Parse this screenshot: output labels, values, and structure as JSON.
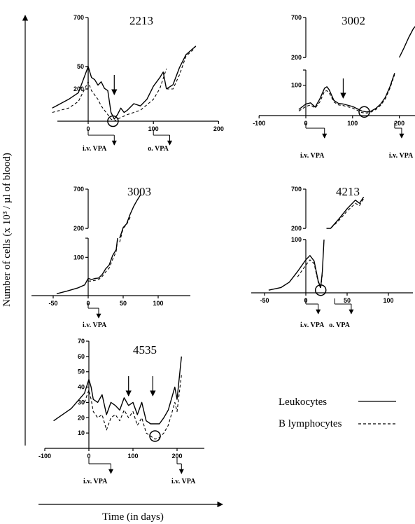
{
  "figure": {
    "ylabel": "Number of cells (x 10³ / µl of blood)",
    "xlabel": "Time (in days)",
    "legend": [
      {
        "name": "Leukocytes",
        "style": "solid"
      },
      {
        "name": "B lymphocytes",
        "style": "dashed"
      }
    ]
  },
  "chart_data": [
    {
      "type": "line",
      "title": "2213",
      "xlim": [
        -55,
        200
      ],
      "xticks": [
        0,
        100,
        200
      ],
      "ylim_low": [
        0,
        50
      ],
      "yticks_low": [
        50
      ],
      "ylim_high": [
        0,
        700
      ],
      "yticks_high": [
        200,
        700
      ],
      "series": [
        {
          "name": "Leukocytes",
          "x": [
            -55,
            -30,
            -15,
            0,
            5,
            10,
            15,
            20,
            25,
            30,
            35,
            40,
            45,
            50,
            55,
            60,
            70,
            80,
            90,
            100,
            105,
            110,
            115,
            120
          ],
          "y": [
            12,
            20,
            26,
            50,
            40,
            38,
            33,
            36,
            30,
            28,
            8,
            2,
            6,
            12,
            8,
            10,
            16,
            14,
            20,
            32,
            36,
            40,
            45,
            52
          ]
        },
        {
          "name": "B lymphocytes",
          "x": [
            -55,
            -30,
            -15,
            0,
            5,
            10,
            15,
            20,
            25,
            30,
            35,
            40,
            45,
            60,
            80,
            100,
            110,
            120
          ],
          "y": [
            8,
            12,
            18,
            36,
            28,
            24,
            20,
            14,
            10,
            6,
            2,
            0,
            2,
            6,
            10,
            20,
            30,
            48
          ]
        },
        {
          "name": "Leukocytes",
          "x": [
            120,
            130,
            140,
            150,
            160,
            165
          ],
          "y": [
            120,
            230,
            350,
            440,
            480,
            500
          ]
        },
        {
          "name": "B lymphocytes",
          "x": [
            120,
            130,
            140,
            150,
            160,
            165
          ],
          "y": [
            80,
            160,
            300,
            430,
            470,
            500
          ]
        }
      ],
      "markers": {
        "arrows_x": [
          40
        ],
        "circles": [
          {
            "x": 38,
            "y": 0
          }
        ]
      },
      "treatments": [
        {
          "label": "i.v. VPA",
          "x0": 0,
          "x1": 40
        },
        {
          "label": "o. VPA",
          "x0": 100,
          "x1": 125
        }
      ]
    },
    {
      "type": "line",
      "title": "3002",
      "xlim": [
        -100,
        240
      ],
      "xticks": [
        -100,
        0,
        100,
        200
      ],
      "ylim_low": [
        0,
        150
      ],
      "yticks_low": [
        100
      ],
      "ylim_high": [
        0,
        700
      ],
      "yticks_high": [
        200,
        700
      ],
      "series": [
        {
          "name": "Leukocytes",
          "x": [
            -15,
            0,
            10,
            20,
            30,
            40,
            45,
            50,
            60,
            70,
            80,
            100,
            120,
            130,
            140,
            150,
            160,
            170,
            180,
            190
          ],
          "y": [
            20,
            38,
            42,
            28,
            55,
            90,
            95,
            85,
            50,
            40,
            38,
            30,
            15,
            12,
            15,
            24,
            38,
            60,
            95,
            140
          ]
        },
        {
          "name": "B lymphocytes",
          "x": [
            -15,
            0,
            10,
            20,
            30,
            40,
            45,
            50,
            60,
            70,
            80,
            100,
            120,
            130,
            140,
            150,
            160,
            170,
            180,
            190
          ],
          "y": [
            15,
            30,
            35,
            25,
            45,
            80,
            82,
            75,
            45,
            35,
            33,
            25,
            10,
            8,
            12,
            20,
            34,
            55,
            90,
            135
          ]
        },
        {
          "name": "Leukocytes",
          "x": [
            200,
            210,
            220,
            230,
            240
          ],
          "y": [
            180,
            320,
            450,
            560,
            630
          ]
        }
      ],
      "markers": {
        "arrows_x": [
          80
        ],
        "circles": [
          {
            "x": 125,
            "y": 12
          }
        ]
      },
      "treatments": [
        {
          "label": "i.v. VPA",
          "x0": 0,
          "x1": 40
        },
        {
          "label": "i.v. VPA",
          "x0": 190,
          "x1": 205
        }
      ]
    },
    {
      "type": "line",
      "title": "3003",
      "xlim": [
        -50,
        100
      ],
      "xticks": [
        -50,
        0,
        50,
        100
      ],
      "ylim_low": [
        0,
        150
      ],
      "yticks_low": [
        100
      ],
      "ylim_high": [
        0,
        700
      ],
      "yticks_high": [
        200,
        700
      ],
      "series": [
        {
          "name": "Leukocytes",
          "x": [
            -45,
            -30,
            -15,
            -5,
            0,
            5,
            10,
            15,
            20,
            25,
            30,
            35,
            40,
            42
          ],
          "y": [
            5,
            12,
            20,
            28,
            45,
            42,
            45,
            46,
            55,
            70,
            80,
            105,
            120,
            150
          ]
        },
        {
          "name": "B lymphocytes",
          "x": [
            0,
            5,
            10,
            15,
            20,
            25,
            30,
            35,
            40,
            42
          ],
          "y": [
            38,
            38,
            40,
            42,
            50,
            62,
            72,
            95,
            115,
            145
          ]
        },
        {
          "name": "Leukocytes",
          "x": [
            45,
            50,
            55,
            60,
            65,
            70,
            75
          ],
          "y": [
            150,
            210,
            260,
            380,
            480,
            560,
            630
          ]
        },
        {
          "name": "B lymphocytes",
          "x": [
            45,
            50,
            55,
            60
          ],
          "y": [
            140,
            200,
            250,
            340
          ]
        }
      ],
      "markers": {
        "arrows_x": [],
        "circles": []
      },
      "treatments": [
        {
          "label": "i.v. VPA",
          "x0": 0,
          "x1": 15
        }
      ]
    },
    {
      "type": "line",
      "title": "4213",
      "xlim": [
        -50,
        100
      ],
      "xticks": [
        -50,
        0,
        50,
        100
      ],
      "ylim_low": [
        0,
        100
      ],
      "yticks_low": [
        100
      ],
      "ylim_high": [
        0,
        700
      ],
      "yticks_high": [
        200,
        700
      ],
      "series": [
        {
          "name": "Leukocytes",
          "x": [
            -45,
            -30,
            -20,
            -10,
            0,
            5,
            10,
            15,
            18,
            20,
            22
          ],
          "y": [
            5,
            10,
            20,
            40,
            62,
            70,
            60,
            22,
            10,
            40,
            100
          ]
        },
        {
          "name": "B lymphocytes",
          "x": [
            -10,
            0,
            5,
            10,
            15,
            18,
            20
          ],
          "y": [
            30,
            52,
            62,
            55,
            20,
            8,
            35
          ]
        },
        {
          "name": "Leukocytes",
          "x": [
            25,
            30,
            40,
            50,
            60,
            65,
            70
          ],
          "y": [
            150,
            200,
            320,
            450,
            560,
            520,
            600
          ]
        },
        {
          "name": "B lymphocytes",
          "x": [
            25,
            30,
            40,
            50,
            60,
            65,
            70
          ],
          "y": [
            140,
            190,
            300,
            420,
            520,
            490,
            580
          ]
        }
      ],
      "markers": {
        "arrows_x": [],
        "circles": [
          {
            "x": 18,
            "y": 5
          }
        ]
      },
      "treatments": [
        {
          "label": "i.v. VPA",
          "x0": 0,
          "x1": 15
        },
        {
          "label": "o. VPA",
          "x0": 35,
          "x1": 55
        }
      ]
    },
    {
      "type": "line",
      "title": "4535",
      "xlim": [
        -100,
        250
      ],
      "xticks": [
        -100,
        0,
        100,
        200
      ],
      "ylim": [
        0,
        70
      ],
      "yticks": [
        10,
        20,
        30,
        40,
        50,
        60,
        70
      ],
      "series": [
        {
          "name": "Leukocytes",
          "x": [
            -80,
            -40,
            -10,
            0,
            5,
            10,
            20,
            30,
            40,
            50,
            60,
            70,
            80,
            90,
            100,
            110,
            120,
            130,
            140,
            150,
            160,
            170,
            180,
            190,
            195,
            200,
            210
          ],
          "y": [
            18,
            26,
            36,
            45,
            40,
            32,
            30,
            35,
            22,
            30,
            28,
            25,
            33,
            28,
            30,
            22,
            30,
            18,
            16,
            16,
            16,
            20,
            25,
            35,
            40,
            32,
            60
          ]
        },
        {
          "name": "B lymphocytes",
          "x": [
            -10,
            0,
            5,
            10,
            20,
            30,
            40,
            50,
            60,
            70,
            80,
            90,
            100,
            110,
            120,
            130,
            140,
            150,
            160,
            170,
            180,
            190,
            195,
            200,
            210
          ],
          "y": [
            30,
            38,
            32,
            24,
            20,
            22,
            12,
            20,
            22,
            18,
            25,
            20,
            24,
            15,
            20,
            10,
            8,
            6,
            7,
            10,
            15,
            25,
            30,
            24,
            48
          ]
        }
      ],
      "markers": {
        "arrows_x": [
          90,
          145
        ],
        "circles": [
          {
            "x": 150,
            "y": 8
          }
        ]
      },
      "treatments": [
        {
          "label": "i.v. VPA",
          "x0": 0,
          "x1": 50
        },
        {
          "label": "i.v. VPA",
          "x0": 200,
          "x1": 210
        }
      ]
    }
  ]
}
